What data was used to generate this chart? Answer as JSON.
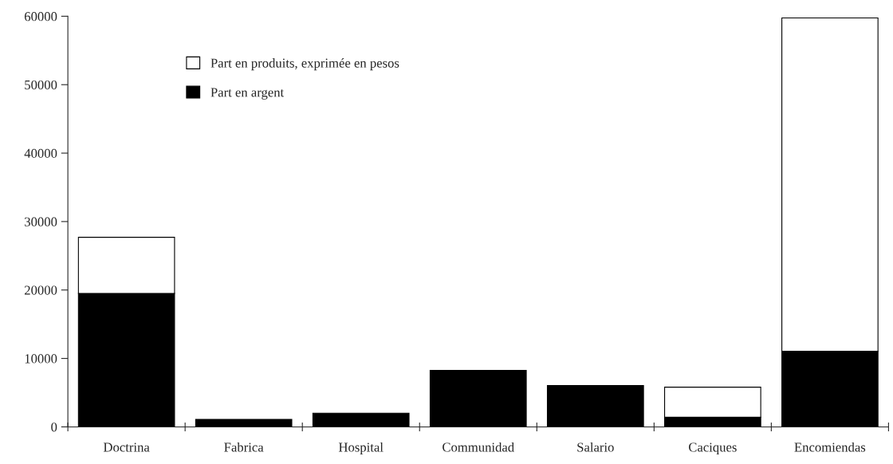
{
  "chart_data": {
    "type": "bar",
    "stacked": true,
    "categories": [
      "Doctrina",
      "Fabrica",
      "Hospital",
      "Communidad",
      "Salario",
      "Caciques",
      "Encomiendas"
    ],
    "series": [
      {
        "name": "Part en argent",
        "color": "#000000",
        "values": [
          19500,
          1100,
          2000,
          8250,
          6050,
          1400,
          11050
        ]
      },
      {
        "name": "Part en produits, exprimée en pesos",
        "color": "#ffffff",
        "values": [
          8200,
          null,
          null,
          null,
          null,
          4400,
          48700
        ]
      }
    ],
    "ylim": [
      0,
      60000
    ],
    "yticks": [
      0,
      10000,
      20000,
      30000,
      40000,
      50000,
      60000
    ],
    "grid": false,
    "legend": "top left"
  }
}
